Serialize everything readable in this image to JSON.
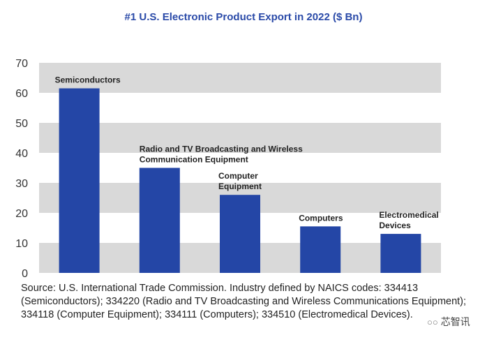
{
  "chart_data": {
    "type": "bar",
    "title": "#1 U.S. Electronic Product Export in 2022 ($ Bn)",
    "categories": [
      "Semiconductors",
      "Radio and TV Broadcasting and Wireless Communication Equipment",
      "Computer Equipment",
      "Computers",
      "Electromedical Devices"
    ],
    "category_label_lines": [
      [
        "Semiconductors"
      ],
      [
        "Radio and TV Broadcasting and Wireless",
        "Communication Equipment"
      ],
      [
        "Computer",
        "Equipment"
      ],
      [
        "Computers"
      ],
      [
        "Electromedical",
        "Devices"
      ]
    ],
    "values": [
      61.5,
      35,
      26,
      15.5,
      13
    ],
    "ylim": [
      0,
      70
    ],
    "yticks": [
      0,
      10,
      20,
      30,
      40,
      50,
      60,
      70
    ],
    "xlabel": "",
    "ylabel": "",
    "grid": "alternating horizontal bands",
    "colors": {
      "bar": "#2446a6",
      "band": "#d9d9d9",
      "title": "#2a4aa8"
    }
  },
  "source_note": "Source: U.S. International Trade Commission. Industry defined by NAICS codes: 334413 (Semiconductors); 334220 (Radio and TV Broadcasting and Wireless Communications Equipment); 334118 (Computer Equipment); 334111 (Computers); 334510 (Electromedical Devices).",
  "watermark": {
    "text": "芯智讯",
    "icon": "wechat-icon"
  }
}
